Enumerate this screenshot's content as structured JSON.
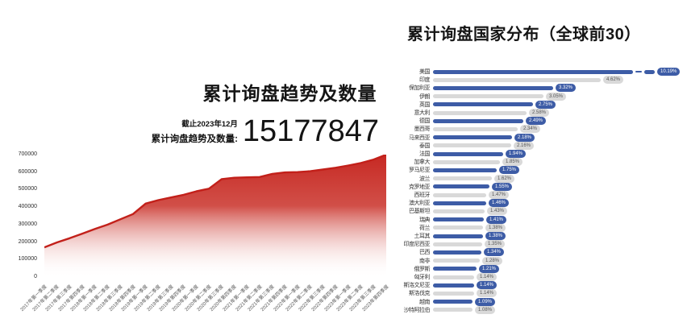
{
  "chart_data": [
    {
      "type": "area",
      "title": "累计询盘趋势及数量",
      "annotation": {
        "as_of": "截止2023年12月",
        "label": "累计询盘趋势及数量:",
        "value": "15177847"
      },
      "x": [
        "2017年第一季度",
        "2017年第二季度",
        "2017年第三季度",
        "2017年第四季度",
        "2018年第一季度",
        "2018年第二季度",
        "2018年第三季度",
        "2018年第四季度",
        "2019年第一季度",
        "2019年第二季度",
        "2019年第三季度",
        "2019年第四季度",
        "2020年第一季度",
        "2020年第二季度",
        "2020年第三季度",
        "2020年第四季度",
        "2021年第一季度",
        "2021年第二季度",
        "2021年第三季度",
        "2021年第四季度",
        "2022年第一季度",
        "2022年第二季度",
        "2022年第三季度",
        "2022年第四季度",
        "2023年第一季度",
        "2023年第二季度",
        "2023年第三季度",
        "2023年第四季度"
      ],
      "values": [
        170000,
        198000,
        222000,
        248000,
        275000,
        300000,
        330000,
        360000,
        420000,
        440000,
        455000,
        470000,
        490000,
        505000,
        560000,
        568000,
        570000,
        572000,
        590000,
        598000,
        600000,
        605000,
        615000,
        625000,
        638000,
        652000,
        672000,
        700000
      ],
      "xlabel": "",
      "ylabel": "",
      "ylim": [
        0,
        700000
      ],
      "yticks": [
        0,
        100000,
        200000,
        300000,
        400000,
        500000,
        600000,
        700000
      ],
      "grid": false,
      "legend": false,
      "colors": {
        "area_top": "#c5221c",
        "area_mid": "#c93028",
        "area_bottom": "#ffffff",
        "line": "#c2201a"
      }
    },
    {
      "type": "bar",
      "orientation": "horizontal",
      "title": "累计询盘国家分布（全球前30）",
      "unit": "%",
      "grid": false,
      "legend": false,
      "truncated_first_bar": true,
      "bar_colors_alternate": [
        "#3d5ca6",
        "#d9d9d9"
      ],
      "categories": [
        "美国",
        "印度",
        "保加利亚",
        "伊朗",
        "英国",
        "意大利",
        "德国",
        "墨西哥",
        "马来西亚",
        "泰国",
        "法国",
        "加拿大",
        "罗马尼亚",
        "波兰",
        "克罗地亚",
        "西班牙",
        "澳大利亚",
        "巴基斯坦",
        "瑞典",
        "荷兰",
        "土耳其",
        "印度尼西亚",
        "巴西",
        "南非",
        "俄罗斯",
        "匈牙利",
        "斯洛文尼亚",
        "斯洛伐克",
        "越南",
        "沙特阿拉伯"
      ],
      "values": [
        10.19,
        4.62,
        3.32,
        3.05,
        2.75,
        2.58,
        2.49,
        2.34,
        2.18,
        2.16,
        1.94,
        1.85,
        1.75,
        1.62,
        1.55,
        1.47,
        1.46,
        1.43,
        1.41,
        1.38,
        1.38,
        1.35,
        1.34,
        1.28,
        1.21,
        1.14,
        1.14,
        1.14,
        1.09,
        1.08
      ],
      "value_labels": [
        "10.19%",
        "4.62%",
        "3.32%",
        "3.05%",
        "2.75%",
        "2.58%",
        "2.49%",
        "2.34%",
        "2.18%",
        "2.16%",
        "1.94%",
        "1.85%",
        "1.75%",
        "1.62%",
        "1.55%",
        "1.47%",
        "1.46%",
        "1.43%",
        "1.41%",
        "1.38%",
        "1.38%",
        "1.35%",
        "1.34%",
        "1.28%",
        "1.21%",
        "1.14%",
        "1.14%",
        "1.14%",
        "1.09%",
        "1.08%"
      ]
    }
  ]
}
